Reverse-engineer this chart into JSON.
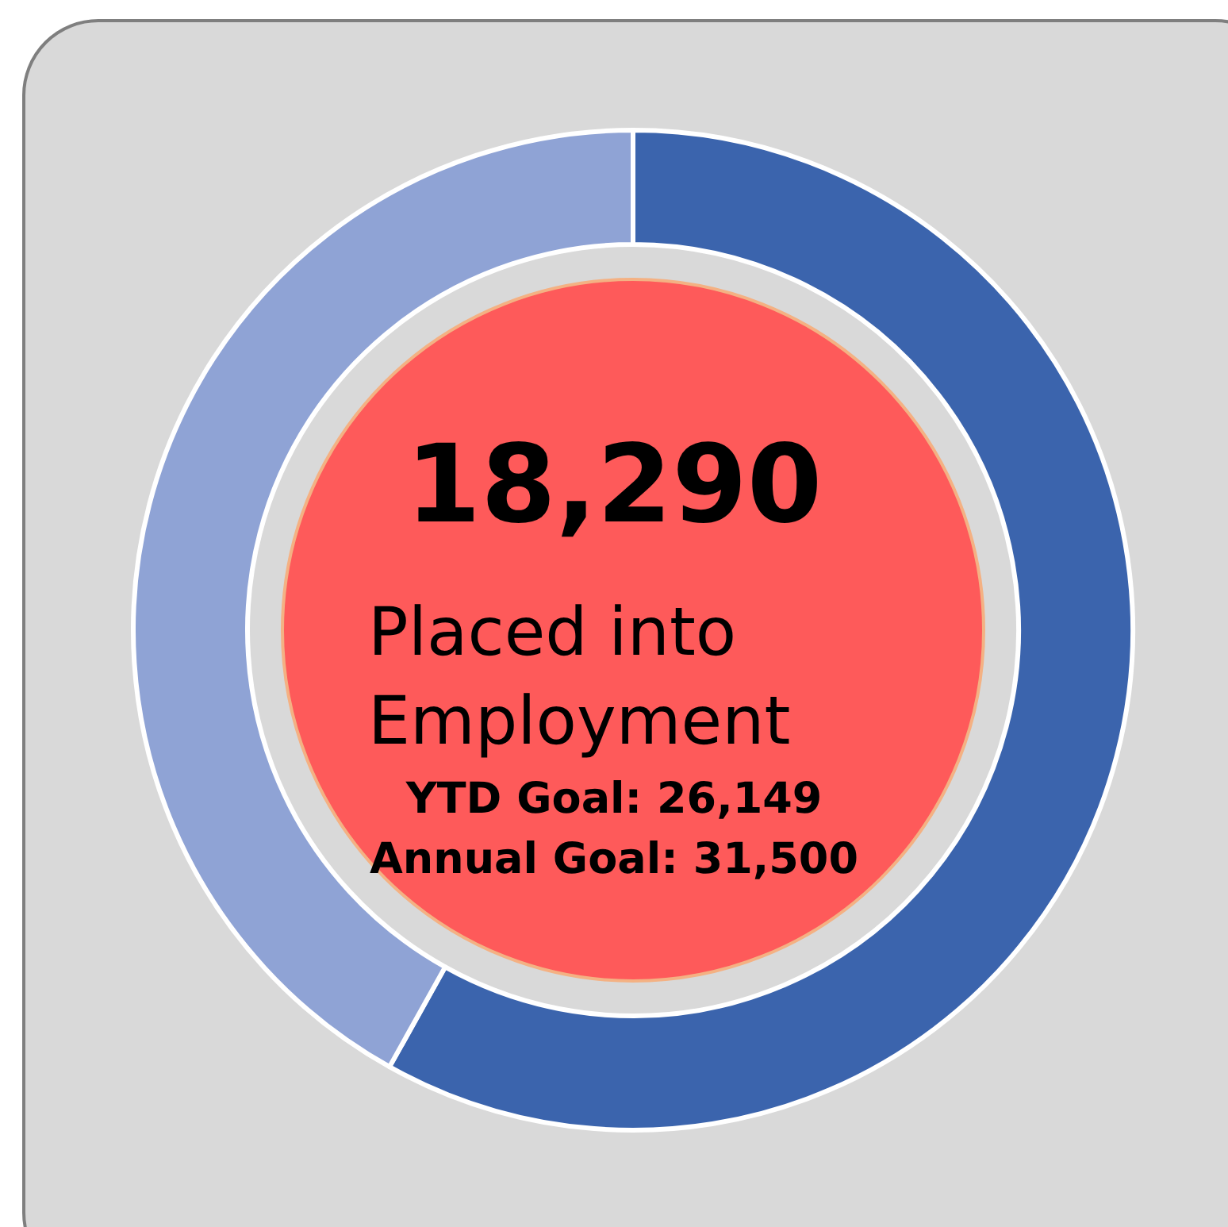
{
  "chart_data": {
    "type": "donut",
    "title": "18,290",
    "subtitle": "Placed into Employment",
    "categories": [
      null,
      null
    ],
    "values": [
      58.1,
      41.9
    ],
    "colors": [
      "#3b64ad",
      "#8fa3d5"
    ],
    "annotations": [
      "YTD Goal: 26,149",
      "Annual Goal: 31,500"
    ]
  }
}
